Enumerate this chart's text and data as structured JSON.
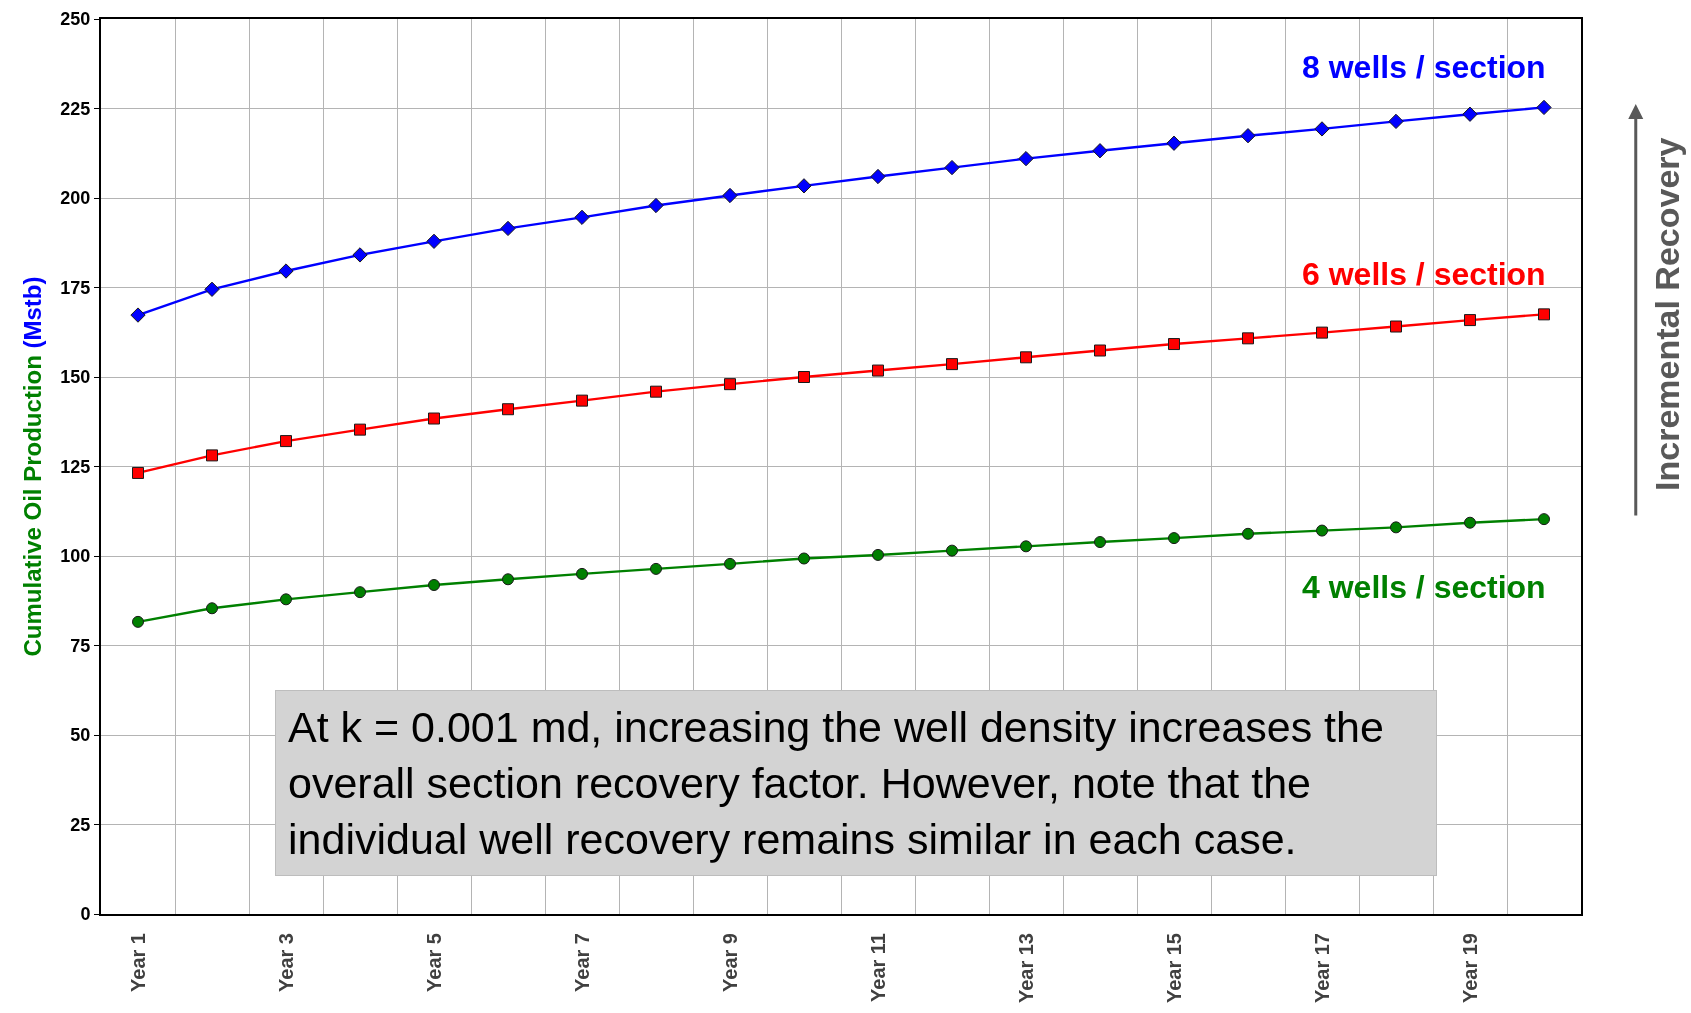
{
  "chart_data": {
    "type": "line",
    "ylabel": "Cumulative Oil Production (Mstb)",
    "annotations": [
      "At k = 0.001 md, increasing the well density increases the overall section recovery factor. However, note that the individual well recovery remains similar in each case.",
      "Incremental Recovery"
    ],
    "categories": [
      "Year 1",
      null,
      "Year 3",
      null,
      "Year 5",
      null,
      "Year 7",
      null,
      "Year 9",
      null,
      "Year 11",
      null,
      "Year 13",
      null,
      "Year 15",
      null,
      "Year 17",
      null,
      "Year 19",
      null
    ],
    "ylim": [
      0,
      250
    ],
    "yticks": [
      0,
      25,
      50,
      75,
      100,
      125,
      150,
      175,
      200,
      225,
      250
    ],
    "grid": true,
    "line_style": "solid",
    "series": [
      {
        "name": "8 wells / section",
        "color": "#0000ff",
        "marker": "diamond",
        "values": [
          167.3,
          174.5,
          179.6,
          184.1,
          187.9,
          191.5,
          194.6,
          197.9,
          200.7,
          203.4,
          206.0,
          208.5,
          211.0,
          213.2,
          215.3,
          217.4,
          219.3,
          221.4,
          223.4,
          225.3
        ]
      },
      {
        "name": "6 wells / section",
        "color": "#ff0000",
        "marker": "square",
        "values": [
          123.2,
          128.1,
          132.1,
          135.3,
          138.4,
          141.0,
          143.4,
          145.9,
          148.0,
          150.0,
          151.8,
          153.6,
          155.5,
          157.4,
          159.2,
          160.8,
          162.4,
          164.1,
          165.9,
          167.5
        ]
      },
      {
        "name": "4 wells / section",
        "color": "#008000",
        "marker": "circle",
        "values": [
          81.6,
          85.4,
          87.9,
          89.9,
          91.9,
          93.5,
          95.0,
          96.4,
          97.8,
          99.3,
          100.3,
          101.5,
          102.7,
          103.9,
          105.0,
          106.2,
          107.1,
          108.0,
          109.3,
          110.3
        ]
      }
    ]
  }
}
